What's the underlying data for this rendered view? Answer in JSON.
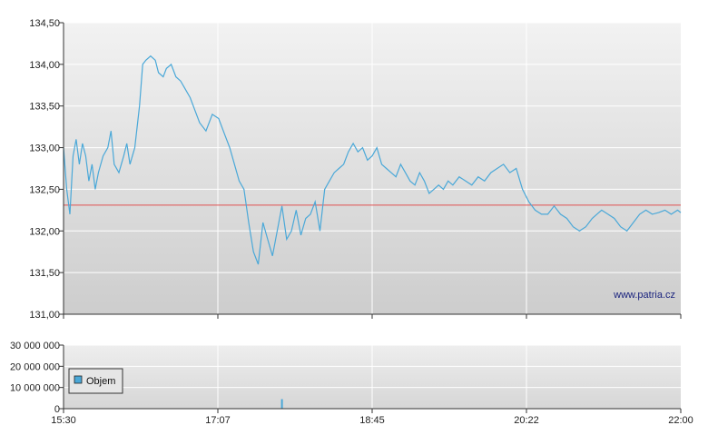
{
  "watermark": "www.patria.cz",
  "colors": {
    "price_line": "#4aa8d8",
    "reference_line": "#e05050",
    "volume_bar": "#4aa8d8",
    "grid": "#ffffff",
    "axis": "#333333"
  },
  "chart_data": [
    {
      "type": "line",
      "title": "",
      "xlabel": "",
      "ylabel": "",
      "ylim": [
        131.0,
        134.5
      ],
      "y_ticks": [
        "131,00",
        "131,50",
        "132,00",
        "132,50",
        "133,00",
        "133,50",
        "134,00",
        "134,50"
      ],
      "x_ticks": [
        "15:30",
        "17:07",
        "18:45",
        "20:22",
        "22:00"
      ],
      "x_range": [
        "15:30",
        "22:00"
      ],
      "grid": true,
      "reference_line": 132.31,
      "series": [
        {
          "x": [
            "15:30",
            "15:32",
            "15:34",
            "15:36",
            "15:38",
            "15:40",
            "15:42",
            "15:44",
            "15:46",
            "15:48",
            "15:50",
            "15:52",
            "15:55",
            "15:58",
            "16:00",
            "16:02",
            "16:05",
            "16:08",
            "16:10",
            "16:12",
            "16:15",
            "16:18",
            "16:20",
            "16:22",
            "16:25",
            "16:28",
            "16:30",
            "16:33",
            "16:35",
            "16:38",
            "16:41",
            "16:44",
            "16:47",
            "16:50",
            "16:53",
            "16:56",
            "17:00",
            "17:04",
            "17:08",
            "17:12",
            "17:15",
            "17:18",
            "17:21",
            "17:24",
            "17:27",
            "17:30",
            "17:33",
            "17:36",
            "17:39",
            "17:42",
            "17:45",
            "17:48",
            "17:51",
            "17:54",
            "17:57",
            "18:00",
            "18:03",
            "18:06",
            "18:09",
            "18:12",
            "18:15",
            "18:18",
            "18:21",
            "18:24",
            "18:27",
            "18:30",
            "18:33",
            "18:36",
            "18:39",
            "18:42",
            "18:45",
            "18:48",
            "18:51",
            "18:54",
            "18:57",
            "19:00",
            "19:03",
            "19:06",
            "19:09",
            "19:12",
            "19:15",
            "19:18",
            "19:21",
            "19:24",
            "19:27",
            "19:30",
            "19:33",
            "19:36",
            "19:40",
            "19:44",
            "19:48",
            "19:52",
            "19:56",
            "20:00",
            "20:04",
            "20:08",
            "20:12",
            "20:16",
            "20:20",
            "20:24",
            "20:28",
            "20:32",
            "20:36",
            "20:40",
            "20:44",
            "20:48",
            "20:52",
            "20:56",
            "21:00",
            "21:04",
            "21:07",
            "21:10",
            "21:14",
            "21:18",
            "21:22",
            "21:26",
            "21:30",
            "21:34",
            "21:38",
            "21:42",
            "21:46",
            "21:50",
            "21:54",
            "21:58",
            "22:00"
          ],
          "values": [
            133.0,
            132.5,
            132.2,
            132.9,
            133.1,
            132.8,
            133.05,
            132.9,
            132.6,
            132.8,
            132.5,
            132.7,
            132.9,
            133.0,
            133.2,
            132.8,
            132.7,
            132.9,
            133.05,
            132.8,
            133.0,
            133.5,
            134.0,
            134.05,
            134.1,
            134.05,
            133.9,
            133.85,
            133.95,
            134.0,
            133.85,
            133.8,
            133.7,
            133.6,
            133.45,
            133.3,
            133.2,
            133.4,
            133.35,
            133.15,
            133.0,
            132.8,
            132.6,
            132.5,
            132.1,
            131.75,
            131.6,
            132.1,
            131.9,
            131.7,
            132.0,
            132.3,
            131.9,
            132.0,
            132.25,
            131.95,
            132.15,
            132.2,
            132.35,
            132.0,
            132.5,
            132.6,
            132.7,
            132.75,
            132.8,
            132.95,
            133.05,
            132.95,
            133.0,
            132.85,
            132.9,
            133.0,
            132.8,
            132.75,
            132.7,
            132.65,
            132.8,
            132.7,
            132.6,
            132.55,
            132.7,
            132.6,
            132.45,
            132.5,
            132.55,
            132.5,
            132.6,
            132.55,
            132.65,
            132.6,
            132.55,
            132.65,
            132.6,
            132.7,
            132.75,
            132.8,
            132.7,
            132.75,
            132.5,
            132.35,
            132.25,
            132.2,
            132.2,
            132.3,
            132.2,
            132.15,
            132.05,
            132.0,
            132.05,
            132.15,
            132.2,
            132.25,
            132.2,
            132.15,
            132.05,
            132.0,
            132.1,
            132.2,
            132.25,
            132.2,
            132.22,
            132.25,
            132.2,
            132.25,
            132.22
          ]
        }
      ]
    },
    {
      "type": "bar",
      "title": "",
      "ylim": [
        0,
        30000000
      ],
      "y_ticks": [
        "0",
        "10 000 000",
        "20 000 000",
        "30 000 000"
      ],
      "x_ticks": [
        "15:30",
        "17:07",
        "18:45",
        "20:22",
        "22:00"
      ],
      "legend": "Objem",
      "legend_position": "bottom-left",
      "series": [
        {
          "name": "Objem",
          "x": [
            "17:48"
          ],
          "values": [
            4500000
          ]
        }
      ]
    }
  ]
}
